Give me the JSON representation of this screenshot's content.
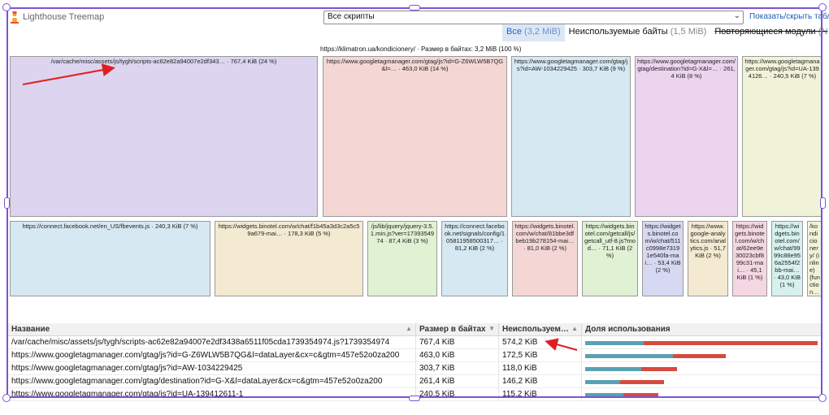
{
  "app": {
    "title": "Lighthouse Treemap",
    "logo_icon": "lighthouse-logo-icon"
  },
  "header": {
    "bundle_select": {
      "value": "Все скрипты"
    },
    "toggle_table_link": "Показать/скрыть табл"
  },
  "modes": [
    {
      "label": "Все",
      "count": "(3,2 MiB)",
      "active": true,
      "strike": false
    },
    {
      "label": "Неиспользуемые байты",
      "count": "(1,5 MiB)",
      "active": false,
      "strike": false
    },
    {
      "label": "Повторяющиеся модули",
      "count": "(N",
      "active": false,
      "strike": true
    }
  ],
  "treemap": {
    "caption": "https://klimatron.ua/kondicionery/ · Размер в байтах: 3,2 MiB (100 %)",
    "nodes": [
      {
        "label": "/var/cache/misc/assets/js/tygh/scripts-ac62e82a94007e2df343… · 767,4 KiB (24 %)",
        "color": "#ddd4f0"
      },
      {
        "label": "https://www.googletagmanager.com/gtag/js?id=G-Z6WLW5B7QG&l=… · 463,0 KiB (14 %)",
        "color": "#f4d7d5"
      },
      {
        "label": "https://www.googletagmanager.com/gtag/js?id=AW-1034229425 · 303,7 KiB (9 %)",
        "color": "#d6e8f1"
      },
      {
        "label": "https://www.googletagmanager.com/gtag/destination?id=G-X&l=… · 261,4 KiB (8 %)",
        "color": "#ecd4ef"
      },
      {
        "label": "https://www.googletagmanager.com/gtag/js?id=UA-1394126… · 240,5 KiB (7 %)",
        "color": "#f1f3d9"
      },
      {
        "label": "https://connect.facebook.net/en_US/fbevents.js · 240,3 KiB (7 %)",
        "color": "#d6e8f1"
      },
      {
        "label": "https://widgets.binotel.com/w/chat/f1b45a3d3c2a5c59a679-mai… · 178,3 KiB (5 %)",
        "color": "#f4ead2"
      },
      {
        "label": "/js/lib/jquery/jquery-3.5.1.min.js?ver=1739354974 · 87,4 KiB (3 %)",
        "color": "#e0f1d4"
      },
      {
        "label": "https://connect.facebook.net/signals/config/105811958500317… · 81,2 KiB (2 %)",
        "color": "#d6e8f1"
      },
      {
        "label": "https://widgets.binotel.com/w/chat/81bbe3dfbeb19b278154-mai… · 81,0 KiB (2 %)",
        "color": "#f4d7d5"
      },
      {
        "label": "https://widgets.binotel.com/getcall/js/getcall_utf-8.js?mod… · 71,1 KiB (2 %)",
        "color": "#e0f1d4"
      },
      {
        "label": "https://widgets.binotel.com/w/chat/511c0998e73191e540fa-mai… · 53,4 KiB (2 %)",
        "color": "#d6d9f1"
      },
      {
        "label": "https://www.google-analytics.com/analytics.js · 51,7 KiB (2 %)",
        "color": "#f4ead2"
      },
      {
        "label": "https://widgets.binotel.com/w/chat/62ee9e30023cbf899c31-mai… · 45,1 KiB (1 %)",
        "color": "#f4d7e2"
      },
      {
        "label": "https://widgets.binotel.com/w/chat/9999c88e956a2554f2bb-mai… · 43,0 KiB (1 %)",
        "color": "#d6f1ee"
      },
      {
        "label": "/kondicionery/ (inline) {function… (inline)",
        "color": "#f1f3d9"
      }
    ]
  },
  "table": {
    "headers": [
      "Название",
      "Размер в байтах",
      "Неиспользуем…",
      "Доля использования"
    ],
    "rows": [
      {
        "name": "/var/cache/misc/assets/js/tygh/scripts-ac62e82a94007e2df3438a6511f05cda1739354974.js?1739354974",
        "size": "767,4 KiB",
        "unused": "574,2 KiB",
        "size_kib": 767.4,
        "unused_kib": 574.2
      },
      {
        "name": "https://www.googletagmanager.com/gtag/js?id=G-Z6WLW5B7QG&l=dataLayer&cx=c&gtm=457e52o0za200",
        "size": "463,0 KiB",
        "unused": "172,5 KiB",
        "size_kib": 463.0,
        "unused_kib": 172.5
      },
      {
        "name": "https://www.googletagmanager.com/gtag/js?id=AW-1034229425",
        "size": "303,7 KiB",
        "unused": "118,0 KiB",
        "size_kib": 303.7,
        "unused_kib": 118.0
      },
      {
        "name": "https://www.googletagmanager.com/gtag/destination?id=G-X&l=dataLayer&cx=c&gtm=457e52o0za200",
        "size": "261,4 KiB",
        "unused": "146,2 KiB",
        "size_kib": 261.4,
        "unused_kib": 146.2
      },
      {
        "name": "https://www.googletagmanager.com/gtag/js?id=UA-139412611-1",
        "size": "240,5 KiB",
        "unused": "115,2 KiB",
        "size_kib": 240.5,
        "unused_kib": 115.2
      }
    ]
  },
  "colors": {
    "frame": "#7b52d6",
    "arrow": "#e02020",
    "used_bar": "#59a1b5",
    "unused_bar": "#d74a3e",
    "accent": "#2a60c5"
  }
}
